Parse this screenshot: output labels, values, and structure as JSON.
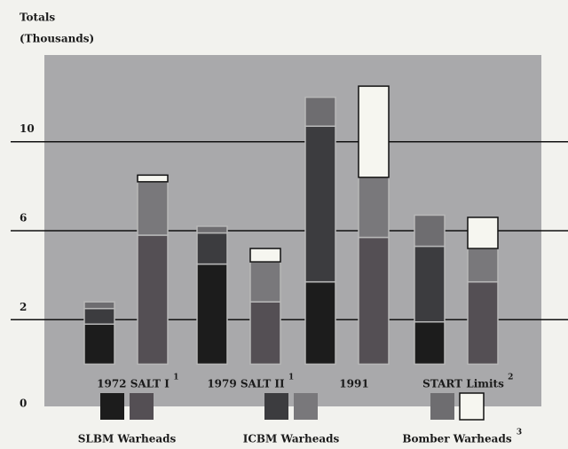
{
  "chart_data": {
    "type": "stacked-bar-pairs",
    "title": "Totals",
    "subtitle": "(Thousands)",
    "categories": [
      "1972 SALT I",
      "1979 SALT II",
      "1991",
      "START Limits"
    ],
    "footnotes": [
      "1",
      "1",
      null,
      "2"
    ],
    "series": [
      {
        "name": "SLBM Warheads",
        "colors": [
          "#1c1c1c",
          "#544f54"
        ],
        "values": [
          [
            1.8,
            5.8
          ],
          [
            4.5,
            2.8
          ],
          [
            3.7,
            5.7
          ],
          [
            1.9,
            3.7
          ]
        ]
      },
      {
        "name": "ICBM Warheads",
        "colors": [
          "#3c3c3f",
          "#79787b"
        ],
        "values": [
          [
            0.7,
            2.4
          ],
          [
            1.4,
            1.8
          ],
          [
            7.0,
            2.7
          ],
          [
            3.4,
            1.5
          ]
        ]
      },
      {
        "name": "Bomber Warheads",
        "footnote": "3",
        "colors": [
          "#6e6d70",
          "#f6f6f0"
        ],
        "values": [
          [
            0.3,
            0.3
          ],
          [
            0.3,
            0.6
          ],
          [
            1.3,
            4.1
          ],
          [
            1.4,
            1.4
          ]
        ]
      }
    ],
    "ylim": [
      -1.9,
      13.9
    ],
    "yticks": [
      0,
      2,
      6,
      10
    ],
    "grid": true
  }
}
